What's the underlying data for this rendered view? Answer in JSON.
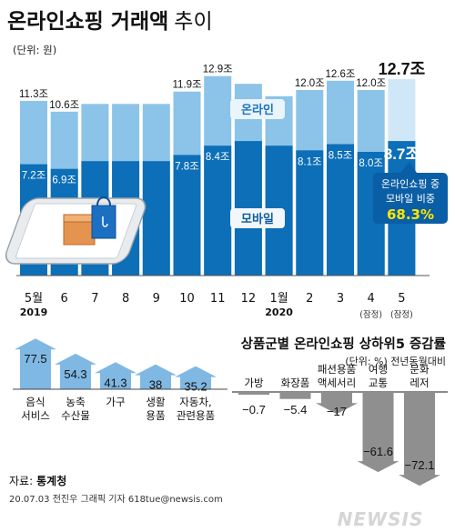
{
  "header": {
    "title_bold": "온라인쇼핑 거래액",
    "title_light": "추이",
    "unit": "(단위: 원)"
  },
  "colors": {
    "total_bar": "#8cc3e8",
    "mobile_bar": "#0c6fb8",
    "highlight_total": "#cfe7f7",
    "callout_bg": "#0a5ea6",
    "callout_highlight": "#ffe600",
    "up_arrow": "#7fb8e3",
    "down_arrow": "#8f8f8f"
  },
  "chart_data": [
    {
      "type": "bar",
      "categories": [
        "5월",
        "6",
        "7",
        "8",
        "9",
        "10",
        "11",
        "12",
        "1월",
        "2",
        "3",
        "4",
        "5"
      ],
      "year_labels": [
        "2019",
        "2020"
      ],
      "provisional_note": [
        "(잠정)",
        "(잠정)"
      ],
      "series": [
        {
          "name": "온라인",
          "values": [
            11.3,
            10.6,
            11.1,
            11.1,
            11.1,
            11.9,
            12.9,
            12.4,
            11.6,
            12.0,
            12.6,
            12.0,
            12.7
          ],
          "labels": [
            "11.3조",
            "10.6조",
            "",
            "",
            "",
            "11.9조",
            "12.9조",
            "",
            "",
            "12.0조",
            "12.6조",
            "12.0조",
            "12.7조"
          ]
        },
        {
          "name": "모바일",
          "values": [
            7.2,
            6.9,
            7.4,
            7.4,
            7.4,
            7.8,
            8.4,
            8.7,
            8.4,
            8.1,
            8.5,
            8.0,
            8.7
          ],
          "labels": [
            "7.2조",
            "6.9조",
            "",
            "",
            "",
            "7.8조",
            "8.4조",
            "",
            "",
            "8.1조",
            "8.5조",
            "8.0조",
            "8.7조"
          ]
        }
      ],
      "callout": {
        "line1": "온라인쇼핑 중",
        "line2_prefix": "모바일 비중",
        "value": "68.3%"
      }
    },
    {
      "type": "bar",
      "title": "상품군별 온라인쇼핑 상하위5 증감률",
      "unit": "(단위: %) 전년동월대비",
      "top5": {
        "categories": [
          "음식\n서비스",
          "농축\n수산물",
          "가구",
          "생활\n용품",
          "자동차,\n관련용품"
        ],
        "values": [
          77.5,
          54.3,
          41.3,
          38,
          35.2
        ],
        "labels": [
          "77.5",
          "54.3",
          "41.3",
          "38",
          "35.2"
        ]
      },
      "bottom5": {
        "categories": [
          "가방",
          "화장품",
          "패션용품\n액세서리",
          "여행\n교통",
          "문화\n레저"
        ],
        "values": [
          -0.7,
          -5.4,
          -17,
          -61.6,
          -72.1
        ],
        "labels": [
          "−0.7",
          "−5.4",
          "−17",
          "−61.6",
          "−72.1"
        ]
      }
    }
  ],
  "footer": {
    "source_label": "자료:",
    "source_name": "통계청",
    "credit": "20.07.03 전진우 그래픽 기자 618tue@newsis.com",
    "watermark": "NEWSIS"
  }
}
